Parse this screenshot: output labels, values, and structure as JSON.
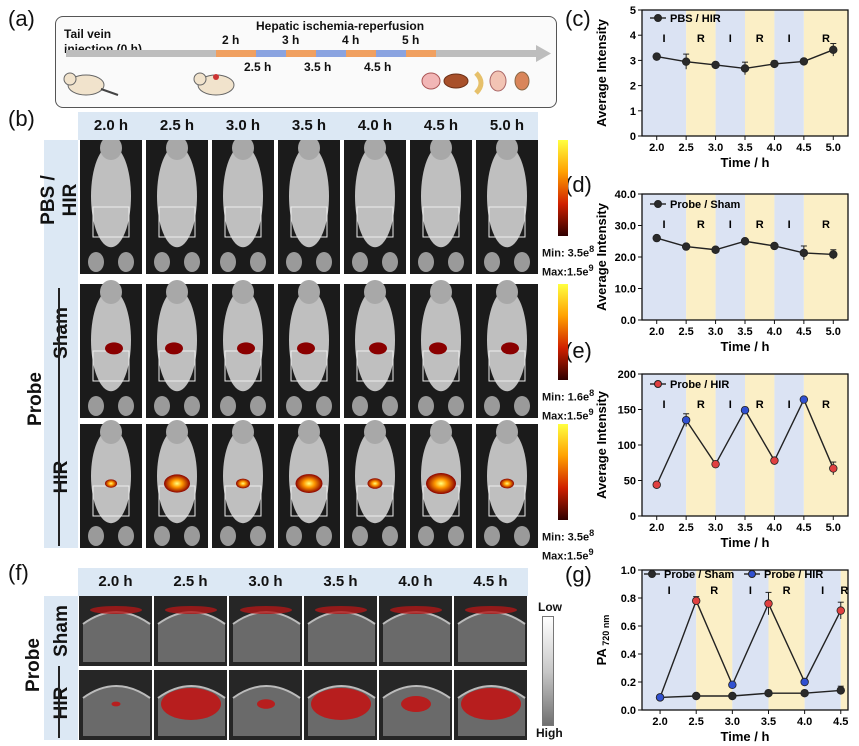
{
  "panels": {
    "a": "(a)",
    "b": "(b)",
    "c": "(c)",
    "d": "(d)",
    "e": "(e)",
    "f": "(f)",
    "g": "(g)"
  },
  "timeline": {
    "start_label_1": "Tail vein",
    "start_label_2": "injection (0 h)",
    "title": "Hepatic ischemia-reperfusion",
    "top_marks": [
      "2 h",
      "3 h",
      "4 h",
      "5 h"
    ],
    "bottom_marks": [
      "2.5 h",
      "3.5 h",
      "4.5 h"
    ]
  },
  "fluorescence": {
    "times": [
      "2.0 h",
      "2.5 h",
      "3.0 h",
      "3.5 h",
      "4.0 h",
      "4.5 h",
      "5.0 h"
    ],
    "rows": [
      {
        "label": "PBS / HIR",
        "min": "Min: 3.5e",
        "min_exp": "8",
        "max": "Max:1.5e",
        "max_exp": "9"
      },
      {
        "label": "Sham",
        "min": "Min: 1.6e",
        "min_exp": "8",
        "max": "Max:1.5e",
        "max_exp": "9"
      },
      {
        "label": "HIR",
        "min": "Min: 3.5e",
        "min_exp": "8",
        "max": "Max:1.5e",
        "max_exp": "9"
      }
    ],
    "probe_label": "Probe"
  },
  "photoacoustic": {
    "times": [
      "2.0 h",
      "2.5 h",
      "3.0 h",
      "3.5 h",
      "4.0 h",
      "4.5 h"
    ],
    "rows": [
      "Sham",
      "HIR"
    ],
    "probe_label": "Probe",
    "scale_low": "Low",
    "scale_high": "High"
  },
  "chart_data": [
    {
      "id": "c",
      "type": "line",
      "x": [
        2.0,
        2.5,
        3.0,
        3.5,
        4.0,
        4.5,
        5.0
      ],
      "series": [
        {
          "name": "PBS / HIR",
          "values": [
            3.15,
            2.95,
            2.82,
            2.68,
            2.86,
            2.96,
            3.42
          ],
          "errors": [
            0.1,
            0.3,
            0.1,
            0.25,
            0.12,
            0.1,
            0.25
          ]
        }
      ],
      "xlabel": "Time / h",
      "ylabel": "Average Intensity",
      "xlim": [
        1.75,
        5.25
      ],
      "ylim": [
        0,
        5
      ],
      "yticks": [
        0,
        1,
        2,
        3,
        4,
        5
      ],
      "xticks": [
        2.0,
        2.5,
        3.0,
        3.5,
        4.0,
        4.5,
        5.0
      ],
      "phases": [
        "I",
        "R",
        "I",
        "R",
        "I",
        "R"
      ],
      "legend": "top-left"
    },
    {
      "id": "d",
      "type": "line",
      "x": [
        2.0,
        2.5,
        3.0,
        3.5,
        4.0,
        4.5,
        5.0
      ],
      "series": [
        {
          "name": "Probe / Sham",
          "values": [
            26.0,
            23.3,
            22.3,
            25.0,
            23.5,
            21.3,
            20.8
          ],
          "errors": [
            0.5,
            0.6,
            0.5,
            0.6,
            0.8,
            2.2,
            1.5
          ]
        }
      ],
      "xlabel": "Time / h",
      "ylabel": "Average Intensity",
      "xlim": [
        1.75,
        5.25
      ],
      "ylim": [
        0,
        40
      ],
      "yticks": [
        0,
        10,
        20,
        30,
        40
      ],
      "xticks": [
        2.0,
        2.5,
        3.0,
        3.5,
        4.0,
        4.5,
        5.0
      ],
      "phases": [
        "I",
        "R",
        "I",
        "R",
        "I",
        "R"
      ],
      "legend": "top-left"
    },
    {
      "id": "e",
      "type": "line",
      "x": [
        2.0,
        2.5,
        3.0,
        3.5,
        4.0,
        4.5,
        5.0
      ],
      "series": [
        {
          "name": "Probe / HIR",
          "values": [
            44,
            135,
            73,
            149,
            78,
            164,
            67
          ],
          "errors": [
            2,
            9,
            2,
            4,
            3,
            3,
            9
          ]
        }
      ],
      "xlabel": "Time / h",
      "ylabel": "Average Intensity",
      "xlim": [
        1.75,
        5.25
      ],
      "ylim": [
        0,
        200
      ],
      "yticks": [
        0,
        50,
        100,
        150,
        200
      ],
      "xticks": [
        2.0,
        2.5,
        3.0,
        3.5,
        4.0,
        4.5,
        5.0
      ],
      "phases": [
        "I",
        "R",
        "I",
        "R",
        "I",
        "R"
      ],
      "legend": "top-left"
    },
    {
      "id": "g",
      "type": "line",
      "x": [
        2.0,
        2.5,
        3.0,
        3.5,
        4.0,
        4.5
      ],
      "series": [
        {
          "name": "Probe / Sham",
          "values": [
            0.09,
            0.1,
            0.1,
            0.12,
            0.12,
            0.14
          ],
          "errors": [
            0.01,
            0.01,
            0.01,
            0.02,
            0.02,
            0.03
          ]
        },
        {
          "name": "Probe / HIR",
          "values": [
            0.09,
            0.78,
            0.18,
            0.76,
            0.2,
            0.71
          ],
          "errors": [
            0.01,
            0.03,
            0.02,
            0.08,
            0.02,
            0.06
          ]
        }
      ],
      "xlabel": "Time / h",
      "ylabel": "PA",
      "ylabel_sub": "720 nm",
      "xlim": [
        1.75,
        4.6
      ],
      "ylim": [
        0,
        1.0
      ],
      "yticks": [
        0.0,
        0.2,
        0.4,
        0.6,
        0.8,
        1.0
      ],
      "xticks": [
        2.0,
        2.5,
        3.0,
        3.5,
        4.0,
        4.5
      ],
      "phases": [
        "I",
        "R",
        "I",
        "R",
        "I",
        "R"
      ],
      "legend": "top"
    }
  ]
}
